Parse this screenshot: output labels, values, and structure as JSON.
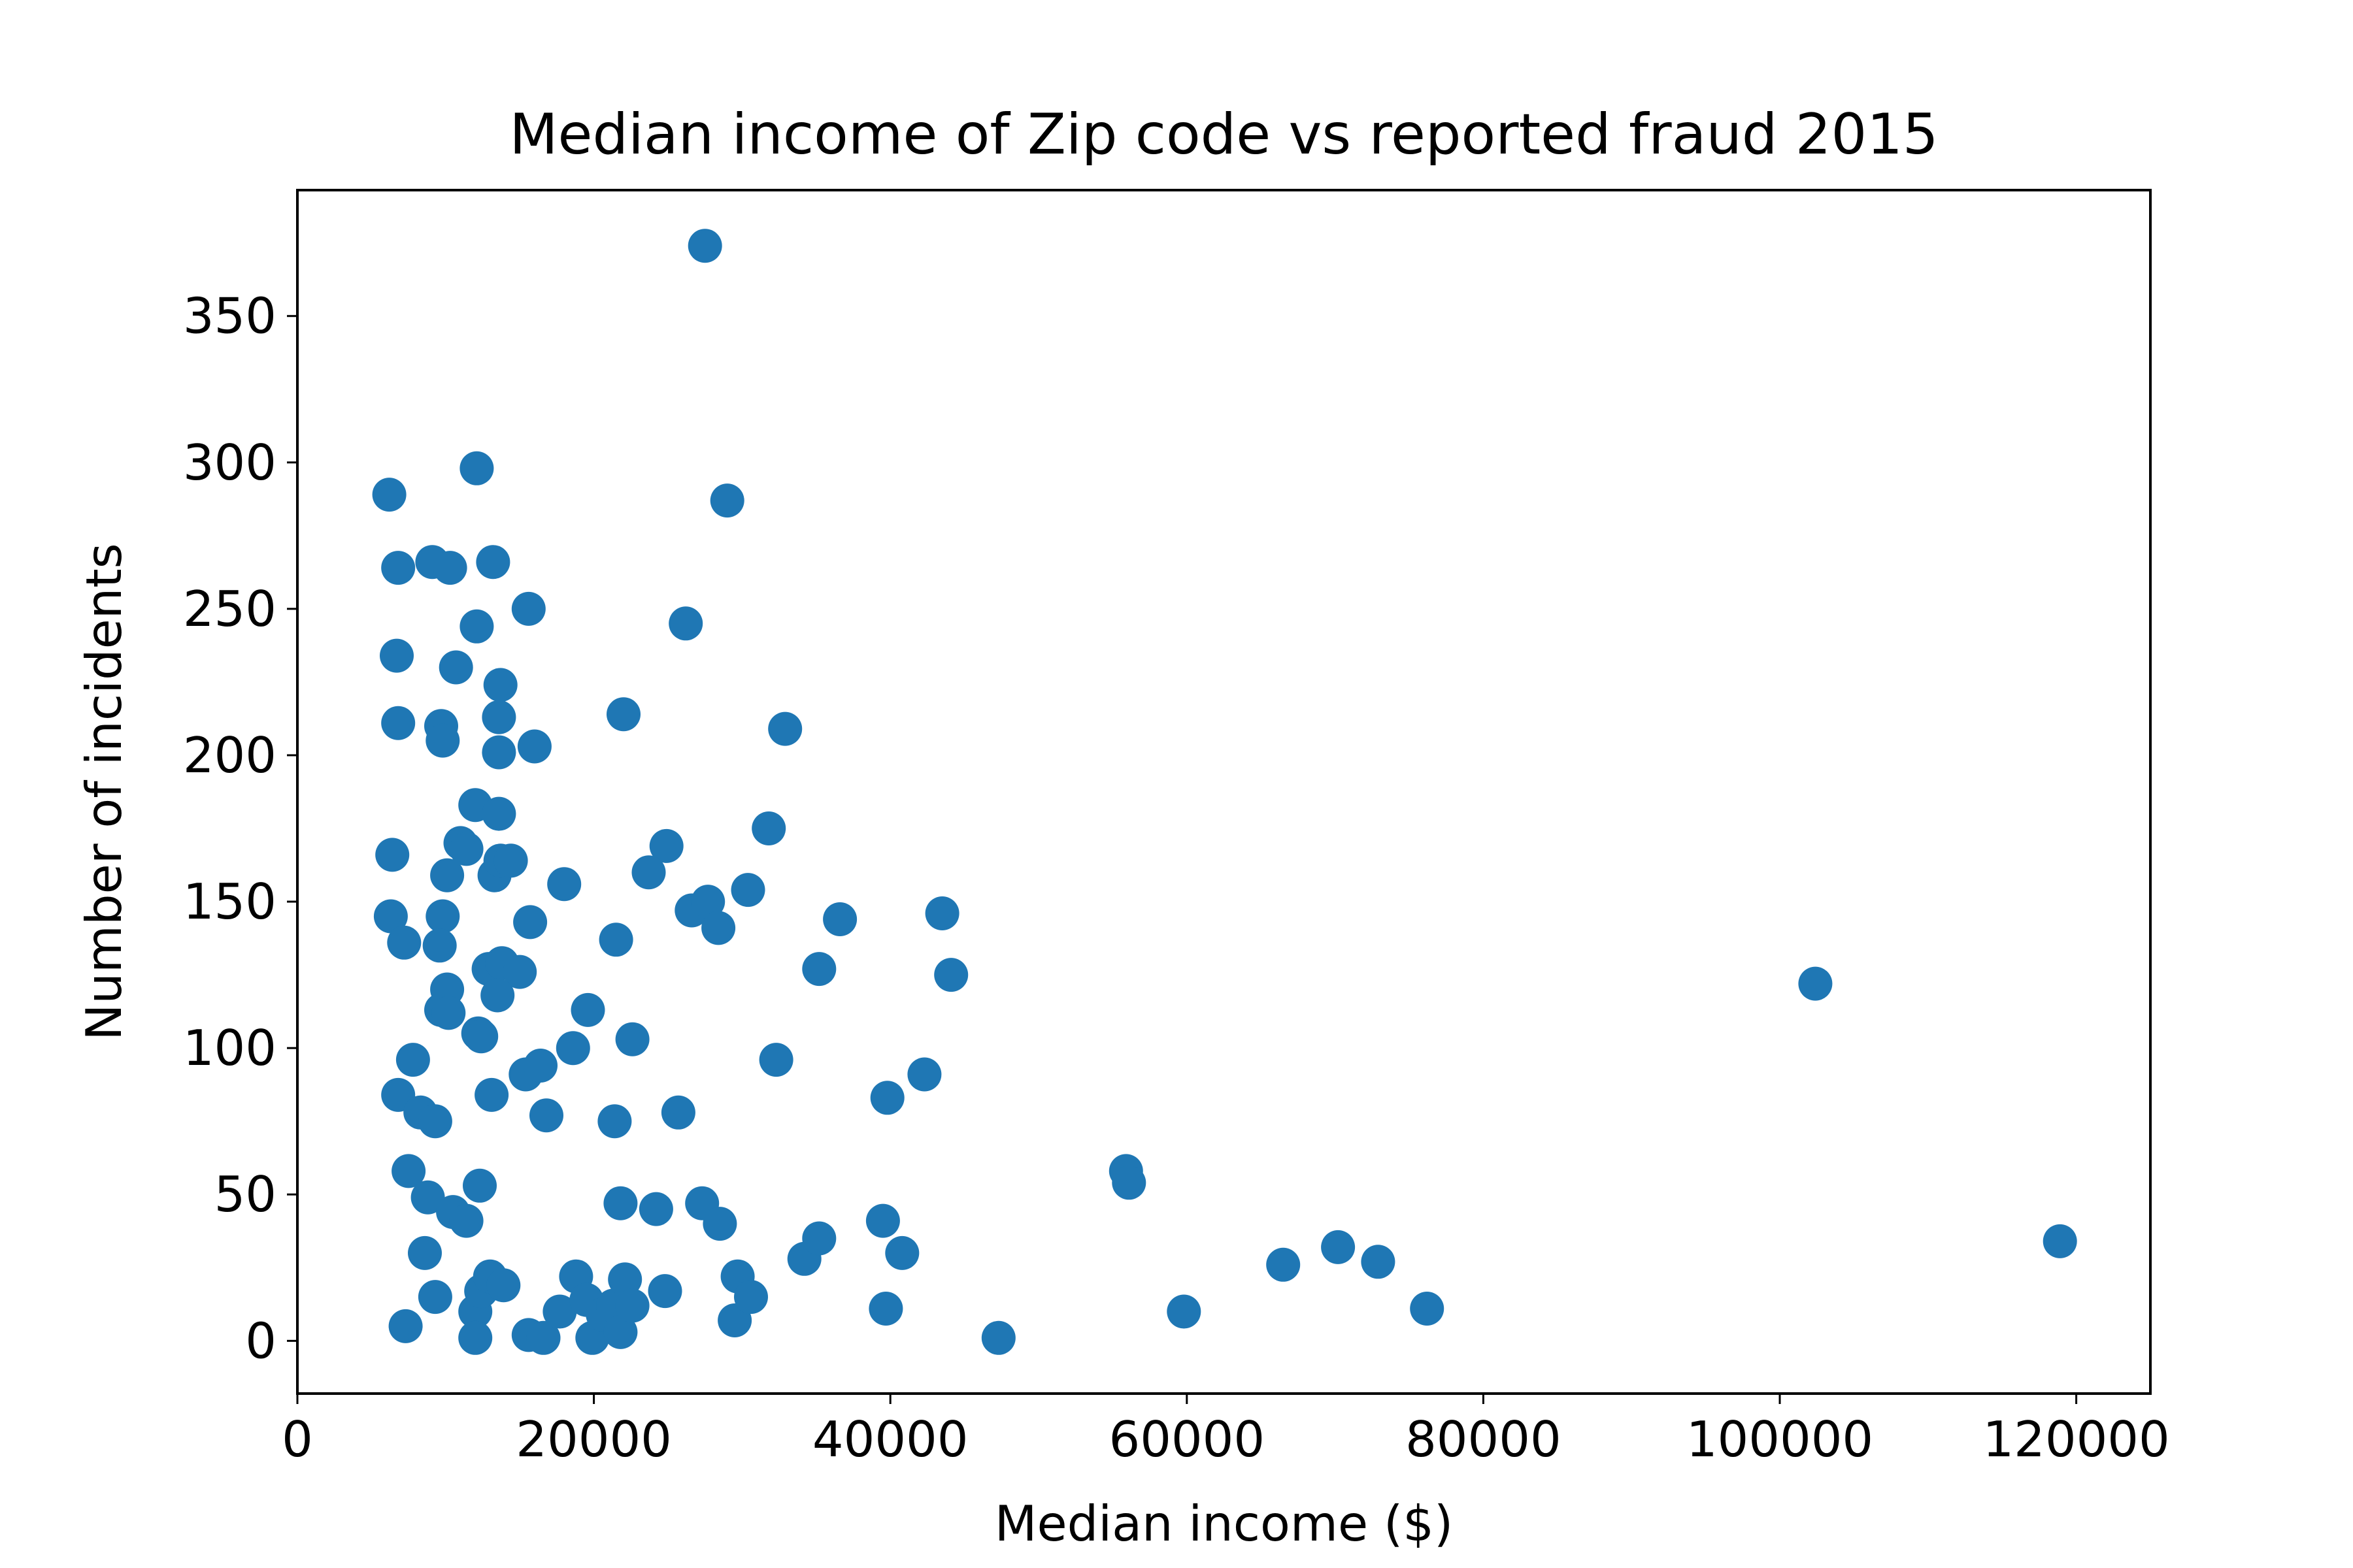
{
  "chart_data": {
    "type": "scatter",
    "title": "Median income of Zip code vs reported fraud 2015",
    "xlabel": "Median income ($)",
    "ylabel": "Number of incidents",
    "xlim": [
      0,
      125000
    ],
    "ylim": [
      -18,
      393
    ],
    "xticks": [
      0,
      20000,
      40000,
      60000,
      80000,
      100000,
      120000
    ],
    "xtick_labels": [
      "0",
      "20000",
      "40000",
      "60000",
      "80000",
      "100000",
      "120000"
    ],
    "yticks": [
      0,
      50,
      100,
      150,
      200,
      250,
      300,
      350
    ],
    "ytick_labels": [
      "0",
      "50",
      "100",
      "150",
      "200",
      "250",
      "300",
      "350"
    ],
    "grid": false,
    "legend": "none",
    "color": "#1f77b4",
    "points": [
      [
        27500,
        374
      ],
      [
        6200,
        289
      ],
      [
        12100,
        298
      ],
      [
        29000,
        287
      ],
      [
        6800,
        264
      ],
      [
        9100,
        266
      ],
      [
        10300,
        264
      ],
      [
        13200,
        266
      ],
      [
        15600,
        250
      ],
      [
        12100,
        244
      ],
      [
        26200,
        245
      ],
      [
        6700,
        234
      ],
      [
        10700,
        230
      ],
      [
        13700,
        224
      ],
      [
        6800,
        211
      ],
      [
        9700,
        210
      ],
      [
        9800,
        205
      ],
      [
        13600,
        213
      ],
      [
        13600,
        201
      ],
      [
        16000,
        203
      ],
      [
        22000,
        214
      ],
      [
        32900,
        209
      ],
      [
        12000,
        183
      ],
      [
        13600,
        180
      ],
      [
        31800,
        175
      ],
      [
        6400,
        166
      ],
      [
        11000,
        170
      ],
      [
        11400,
        168
      ],
      [
        10100,
        159
      ],
      [
        13300,
        159
      ],
      [
        13700,
        164
      ],
      [
        14400,
        164
      ],
      [
        24900,
        169
      ],
      [
        23700,
        160
      ],
      [
        18000,
        156
      ],
      [
        30400,
        154
      ],
      [
        6300,
        145
      ],
      [
        7200,
        136
      ],
      [
        9800,
        145
      ],
      [
        9600,
        135
      ],
      [
        15700,
        143
      ],
      [
        21500,
        137
      ],
      [
        26600,
        147
      ],
      [
        27700,
        150
      ],
      [
        28400,
        141
      ],
      [
        36600,
        144
      ],
      [
        43500,
        146
      ],
      [
        12900,
        127
      ],
      [
        13800,
        129
      ],
      [
        15000,
        126
      ],
      [
        13500,
        118
      ],
      [
        35200,
        127
      ],
      [
        44100,
        125
      ],
      [
        102400,
        122
      ],
      [
        9700,
        113
      ],
      [
        10100,
        120
      ],
      [
        10200,
        112
      ],
      [
        12200,
        105
      ],
      [
        12400,
        104
      ],
      [
        19600,
        113
      ],
      [
        7800,
        96
      ],
      [
        18600,
        100
      ],
      [
        22600,
        103
      ],
      [
        32300,
        96
      ],
      [
        6800,
        84
      ],
      [
        8300,
        78
      ],
      [
        9300,
        75
      ],
      [
        13100,
        84
      ],
      [
        15400,
        91
      ],
      [
        16400,
        94
      ],
      [
        16800,
        77
      ],
      [
        21400,
        75
      ],
      [
        25700,
        78
      ],
      [
        39800,
        83
      ],
      [
        42300,
        91
      ],
      [
        7500,
        58
      ],
      [
        8800,
        49
      ],
      [
        10500,
        44
      ],
      [
        11400,
        41
      ],
      [
        12300,
        53
      ],
      [
        21800,
        47
      ],
      [
        24200,
        45
      ],
      [
        27300,
        47
      ],
      [
        28500,
        40
      ],
      [
        34200,
        28
      ],
      [
        35200,
        35
      ],
      [
        39500,
        41
      ],
      [
        40800,
        30
      ],
      [
        55900,
        58
      ],
      [
        56100,
        54
      ],
      [
        66500,
        26
      ],
      [
        70200,
        32
      ],
      [
        72900,
        27
      ],
      [
        118900,
        34
      ],
      [
        7300,
        5
      ],
      [
        8600,
        30
      ],
      [
        9300,
        15
      ],
      [
        12000,
        10
      ],
      [
        12000,
        1
      ],
      [
        12400,
        17
      ],
      [
        13000,
        22
      ],
      [
        13900,
        19
      ],
      [
        15600,
        2
      ],
      [
        16600,
        1
      ],
      [
        17700,
        10
      ],
      [
        18800,
        22
      ],
      [
        19500,
        14
      ],
      [
        19900,
        1
      ],
      [
        20600,
        9
      ],
      [
        21300,
        12
      ],
      [
        21800,
        3
      ],
      [
        22100,
        21
      ],
      [
        22600,
        12
      ],
      [
        24800,
        17
      ],
      [
        29500,
        7
      ],
      [
        29700,
        22
      ],
      [
        30600,
        15
      ],
      [
        39700,
        11
      ],
      [
        47300,
        1
      ],
      [
        59800,
        10
      ],
      [
        76200,
        11
      ]
    ]
  }
}
